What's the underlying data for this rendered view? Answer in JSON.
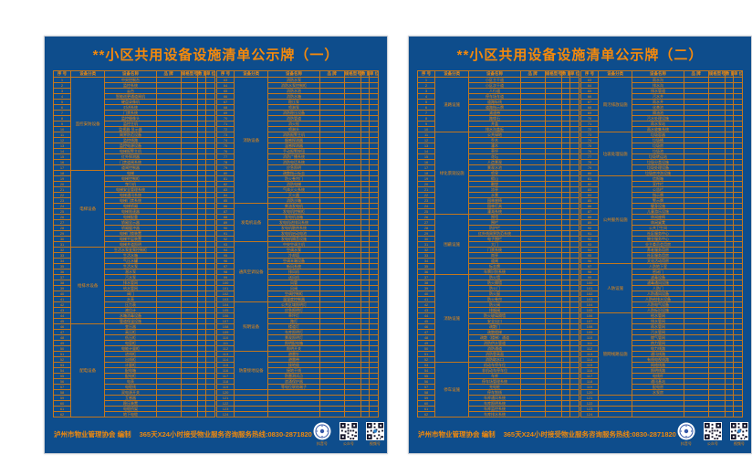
{
  "colors": {
    "panel_bg": "#0E4D8C",
    "accent": "#EE8A10",
    "grid": "#C4771C"
  },
  "footer": {
    "issuer": "泸州市物业管理协会 编制",
    "hotline": "365天X24小时接受物业服务咨询服务热线:0830-2871820",
    "badges": [
      "抖音号",
      "公众号",
      "视频号"
    ]
  },
  "panels": [
    {
      "title": "**小区共用设备设施清单公示牌（一）",
      "columns": [
        "序 号",
        "设备分类",
        "设备名称",
        "品 牌",
        "规格型号",
        "数 量",
        "单 位"
      ],
      "total_rows": 124,
      "groups": [
        {
          "category": "监控安防设备",
          "items": [
            "中央控制台",
            "监控系统",
            "云台",
            "智能巡更通道闸机",
            "硬盘录像机",
            "对讲系统",
            "门禁系统",
            "监控摄像头",
            "监控主机",
            "监视器·显示器",
            "周界防范设备",
            "监控线路",
            "监控电源设备",
            "电梯报警主机",
            "红外探测器",
            "门禁道闸系统",
            "道闸控制器"
          ]
        },
        {
          "category": "电梯设备",
          "items": [
            "电梯",
            "电梯控制柜",
            "曳引机",
            "电梯安全管理系统",
            "电梯通讯系统",
            "电梯门禁系统",
            "电梯轿厢",
            "电梯限速器",
            "电梯配重",
            "轿厢显示器",
            "轿厢缓冲器",
            "电梯门锁装置",
            "电梯平层装置",
            "电梯井道照明"
          ]
        },
        {
          "category": "给排水设备",
          "items": [
            "生活水泵变频控制柜",
            "生活水箱",
            "气压水罐",
            "生活水泵",
            "潜水泵",
            "污水泵",
            "排水管网",
            "给水管网",
            "阀门",
            "水表",
            "压力表",
            "液位计",
            "水箱消毒设备",
            "管道保温设施"
          ]
        },
        {
          "category": "配电设备",
          "items": [
            "变压器",
            "高压柜",
            "低压柜",
            "电容柜",
            "电能计量柜",
            "进线柜",
            "出线柜",
            "计量柜",
            "配电箱",
            "配电柜",
            "电表",
            "电缆线",
            "双电源开关",
            "互感器",
            "稳压装置",
            "电缆桥架",
            "地下电缆"
          ]
        },
        {
          "category": "消防设备",
          "items": [
            "消防水泵",
            "消防水泵控制柜",
            "消防水池",
            "消防水箱",
            "稳压泵",
            "喷淋泵",
            "消防稳压设备",
            "消防管道",
            "消火栓",
            "喷淋头",
            "消防报警主机",
            "烟感探测器",
            "温感探测器",
            "手动报警按钮",
            "消防广播系统",
            "消防电话系统",
            "应急照明",
            "疏散指示标志",
            "防火卷帘门",
            "消防电梯",
            "气体灭火系统",
            "灭火器",
            "消防沙箱"
          ]
        },
        {
          "category": "发电机设备",
          "items": [
            "柴油发电机",
            "发电机控制柜",
            "发电机油箱",
            "发电机进排风系统",
            "发电机散热系统",
            "发电机启动电池",
            "发电机隔音设施"
          ]
        },
        {
          "category": "通风空调设备",
          "items": [
            "中央空调主机",
            "空调水泵",
            "冷却塔",
            "空调末端设备",
            "新风系统",
            "排风机",
            "送风机",
            "风管",
            "风阀",
            "空调控制柜",
            "温湿度控制器"
          ]
        },
        {
          "category": "照明设备",
          "items": [
            "公共区域照明灯",
            "应急照明灯",
            "草坪灯",
            "路灯",
            "楼道灯",
            "车库照明灯",
            "景观照明灯",
            "照明配电箱",
            "照明开关"
          ]
        },
        {
          "category": "防雷接地设备",
          "items": [
            "避雷针",
            "避雷带",
            "接地极",
            "接地干线",
            "防雷测试点",
            "浪涌保护器",
            "等电位联结端子"
          ]
        }
      ]
    },
    {
      "title": "**小区共用设备设施清单公示牌（二）",
      "columns": [
        "序 号",
        "设备分类",
        "设备名称",
        "品 牌",
        "规格型号",
        "数 量",
        "单 位"
      ],
      "total_rows": 124,
      "groups": [
        {
          "category": "道路设施",
          "items": [
            "小区主干道",
            "小区次干道",
            "人行道",
            "停车场车道",
            "道路标线",
            "道路指示牌",
            "减速带",
            "路缘石",
            "井盖",
            "排水沟盖板"
          ]
        },
        {
          "category": "绿化景观设施",
          "items": [
            "公共绿地",
            "乔木",
            "灌木",
            "草坪",
            "花坛",
            "人造景观",
            "景观水池",
            "喷泉",
            "假山",
            "雕塑",
            "凉亭",
            "水景",
            "园林座椅",
            "园林灯具",
            "灌溉系统"
          ]
        },
        {
          "category": "围蔽设施",
          "items": [
            "围墙",
            "围栏",
            "防护栏",
            "红外线周界防范系统",
            "电子围栏",
            "大门",
            "门禁系统",
            "岗亭",
            "道闸",
            "标志牌",
            "车牌识别系统"
          ]
        },
        {
          "category": "消防设施",
          "items": [
            "防火墙",
            "防火隔墙",
            "防火门",
            "防火窗",
            "防火卷帘",
            "防火阀",
            "排烟阀",
            "防火玻璃隔墙",
            "安全出口",
            "疏散门",
            "疏散楼梯",
            "疏散（楼梯）通道",
            "消防供水管道",
            "消防通道",
            "消防登高面",
            "消防取水口"
          ]
        },
        {
          "category": "停车设施",
          "items": [
            "机动车停车位",
            "非机动车停车位",
            "车库",
            "停车场管理系统",
            "充电桩",
            "停车划线",
            "车库通风系统",
            "车库照明系统",
            "车库监控系统",
            "车库排水系统"
          ]
        },
        {
          "category": "雨污排放设施",
          "items": [
            "雨水沟",
            "排水沟",
            "排水管道",
            "污水井",
            "雨水井",
            "化粪池",
            "隔油池",
            "污水处理设施",
            "雨水泵站",
            "雨水收集系统"
          ]
        },
        {
          "category": "垃圾处理设施",
          "items": [
            "垃圾容器",
            "垃圾桶",
            "垃圾房",
            "垃圾池",
            "垃圾转运站",
            "垃圾分类设施",
            "垃圾处理设备",
            "垃圾房冲洗设施"
          ]
        },
        {
          "category": "公共服务设施",
          "items": [
            "信报箱",
            "宣传栏",
            "公告栏",
            "指示牌",
            "警示牌",
            "健身设施",
            "儿童游乐设施",
            "休闲座椅",
            "休闲桌凳",
            "公共卫生间",
            "社区服务中心",
            "物业服务中心",
            "业主委员会用房",
            "养老服务用房",
            "社区服务用房",
            "文化活动用房"
          ]
        },
        {
          "category": "人防设施",
          "items": [
            "人防地下室",
            "密闭门",
            "滤毒设备",
            "滤毒通风设施",
            "人防门",
            "人防通风设备",
            "人防给排水设备",
            "人防电气设备",
            "人防标识设施"
          ]
        },
        {
          "category": "管网线路设施",
          "items": [
            "给水管网",
            "排水管网",
            "雨水管网",
            "污水管网",
            "燃气管网",
            "热力管网",
            "电力线路",
            "通讯线路",
            "有线电视线路",
            "网络线路",
            "照明线路",
            "电线杆",
            "通讯基站",
            "配电房",
            "水泵房"
          ]
        }
      ]
    }
  ]
}
